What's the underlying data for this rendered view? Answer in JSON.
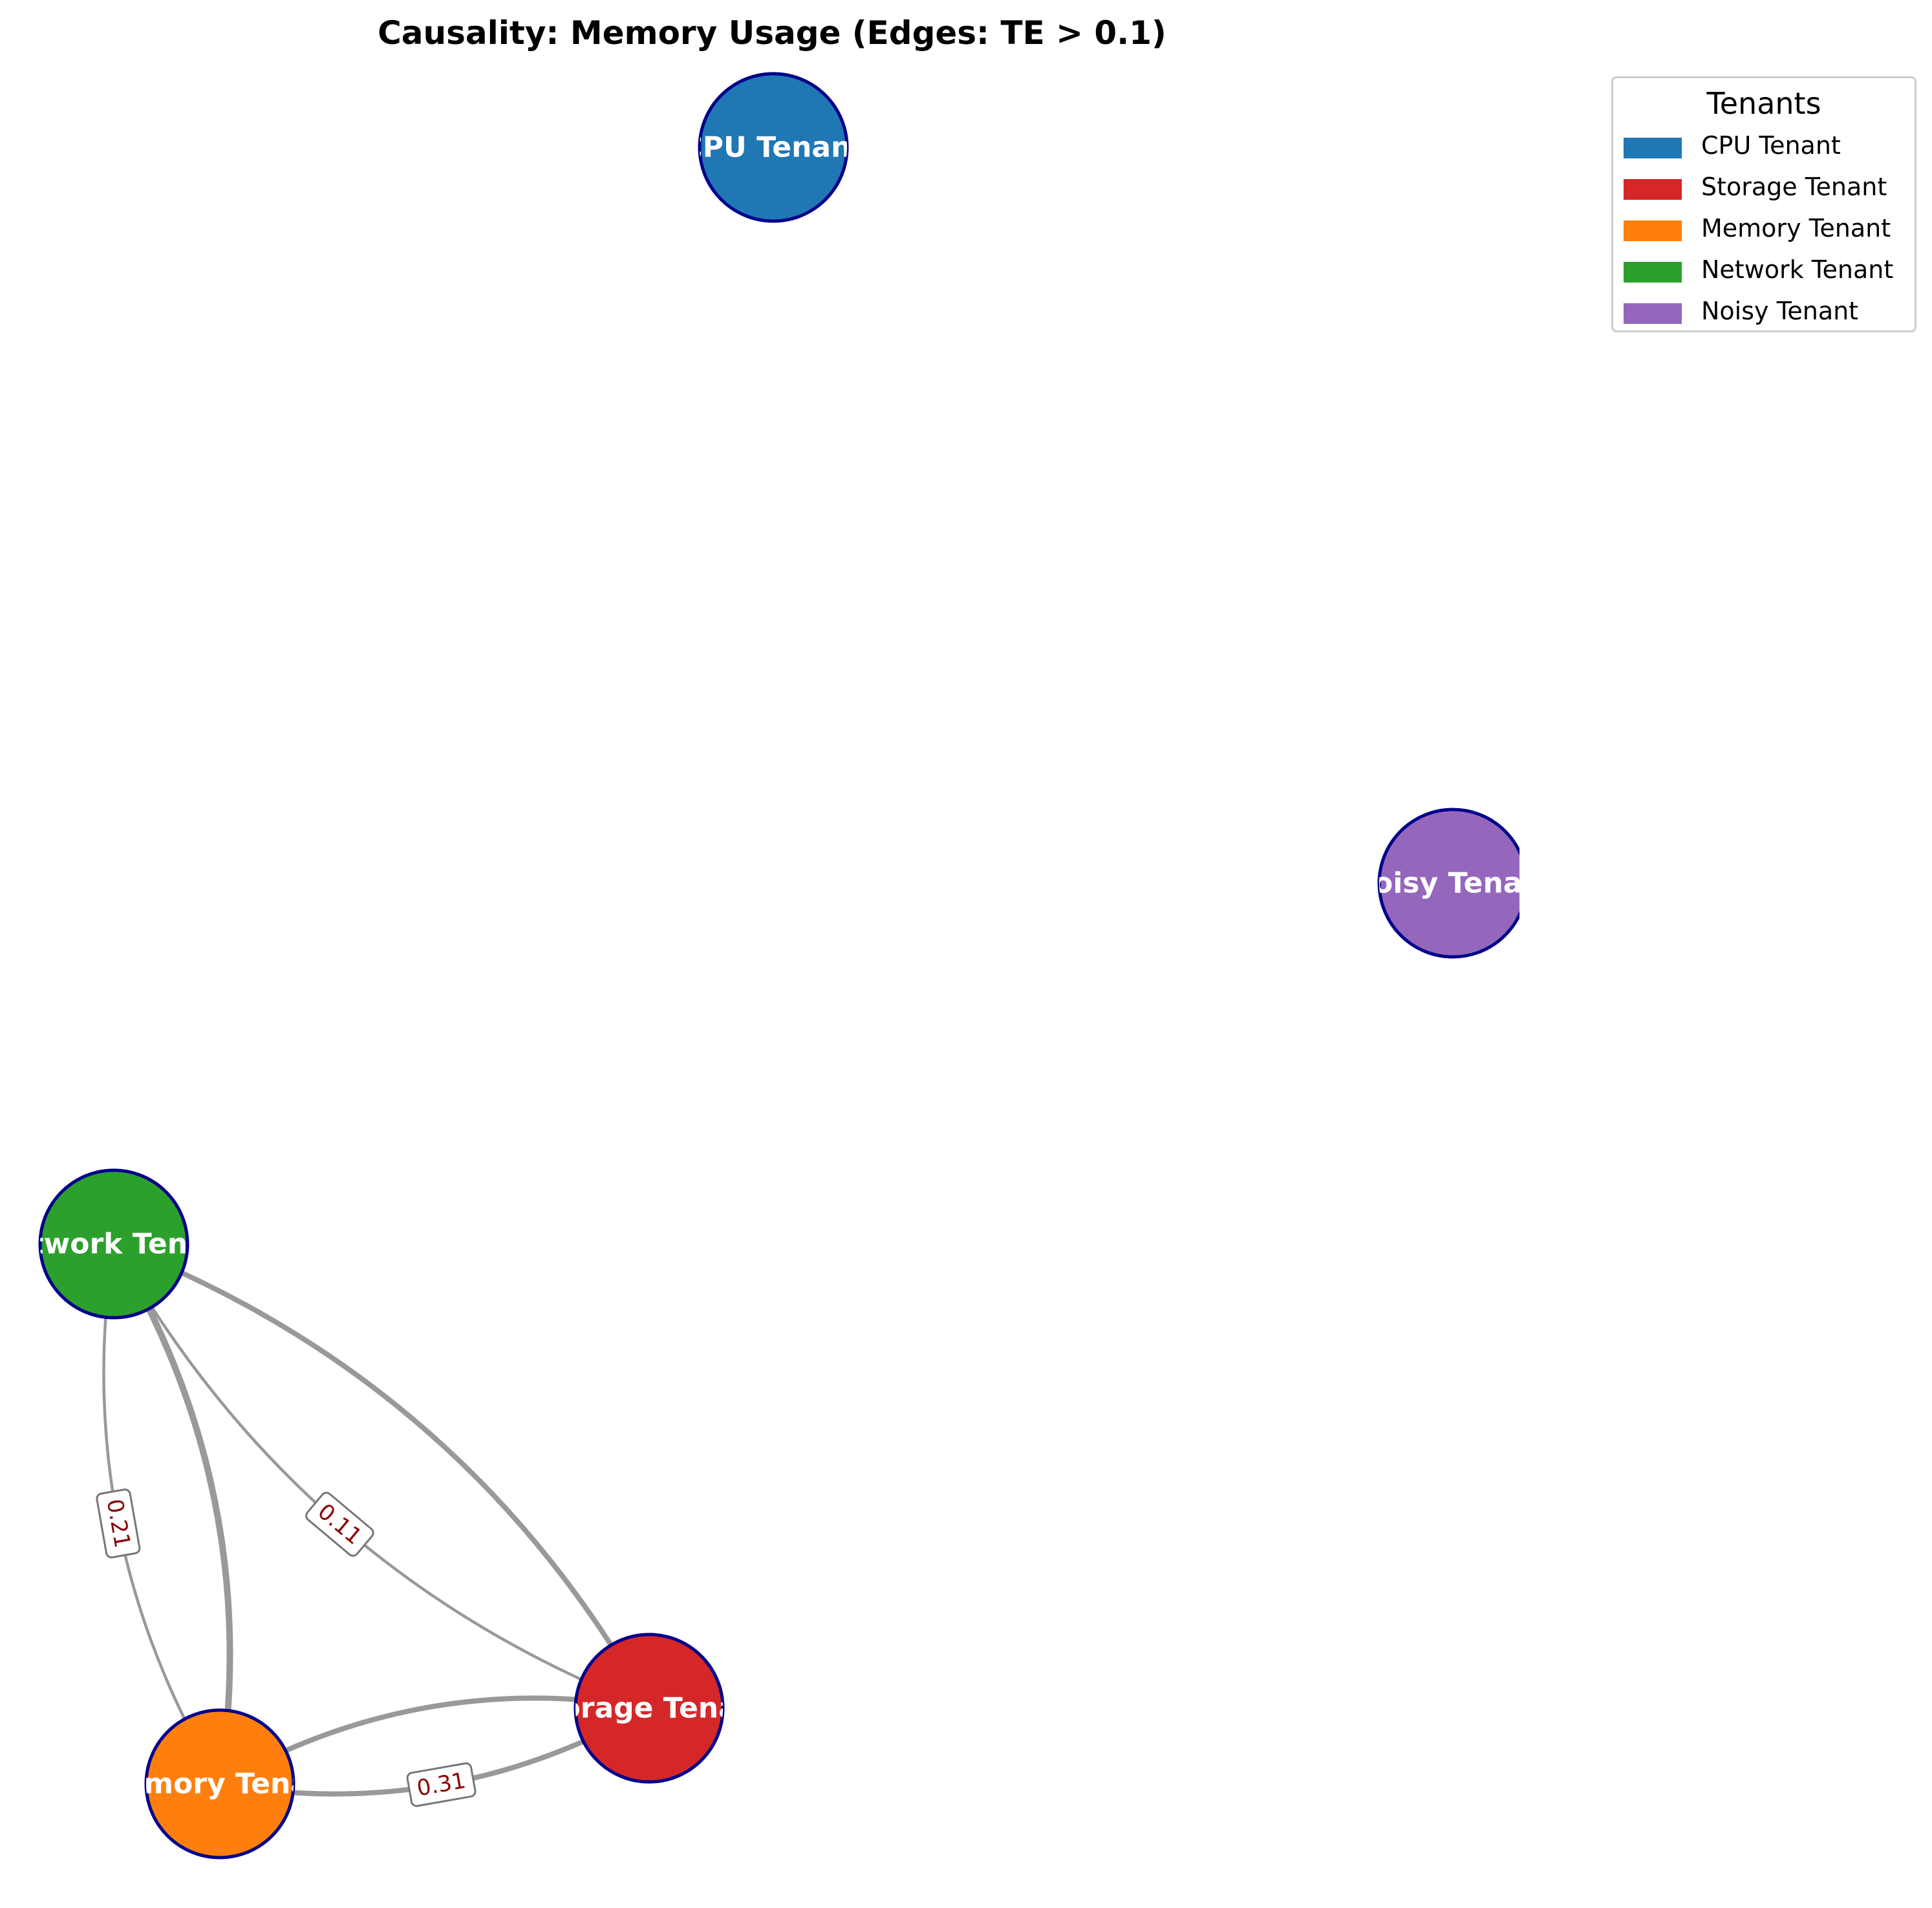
{
  "title": "Causality: Memory Usage (Edges: TE > 0.1)",
  "legend": {
    "title": "Tenants",
    "entries": [
      {
        "label": "CPU Tenant",
        "color": "#1f77b4"
      },
      {
        "label": "Storage Tenant",
        "color": "#d62728"
      },
      {
        "label": "Memory Tenant",
        "color": "#ff7f0e"
      },
      {
        "label": "Network Tenant",
        "color": "#2ca02c"
      },
      {
        "label": "Noisy Tenant",
        "color": "#9467bd"
      }
    ]
  },
  "nodes": [
    {
      "id": "cpu",
      "label": "CPU Tenant",
      "color": "#1f77b4"
    },
    {
      "id": "noisy",
      "label": "Noisy Tenant",
      "color": "#9467bd"
    },
    {
      "id": "network",
      "label": "Network Tenant",
      "color": "#2ca02c"
    },
    {
      "id": "storage",
      "label": "Storage Tenant",
      "color": "#d62728"
    },
    {
      "id": "memory",
      "label": "Memory Tenant",
      "color": "#ff7f0e"
    }
  ],
  "edges": [
    {
      "source": "network",
      "target": "memory",
      "weight": "0.21"
    },
    {
      "source": "memory",
      "target": "network",
      "weight": ""
    },
    {
      "source": "network",
      "target": "storage",
      "weight": "0.11"
    },
    {
      "source": "storage",
      "target": "network",
      "weight": ""
    },
    {
      "source": "memory",
      "target": "storage",
      "weight": "0.31"
    },
    {
      "source": "storage",
      "target": "memory",
      "weight": ""
    }
  ],
  "styles": {
    "edge_color": "#999999",
    "node_border_color": "#00008b",
    "edge_label_color": "#8b0000"
  }
}
